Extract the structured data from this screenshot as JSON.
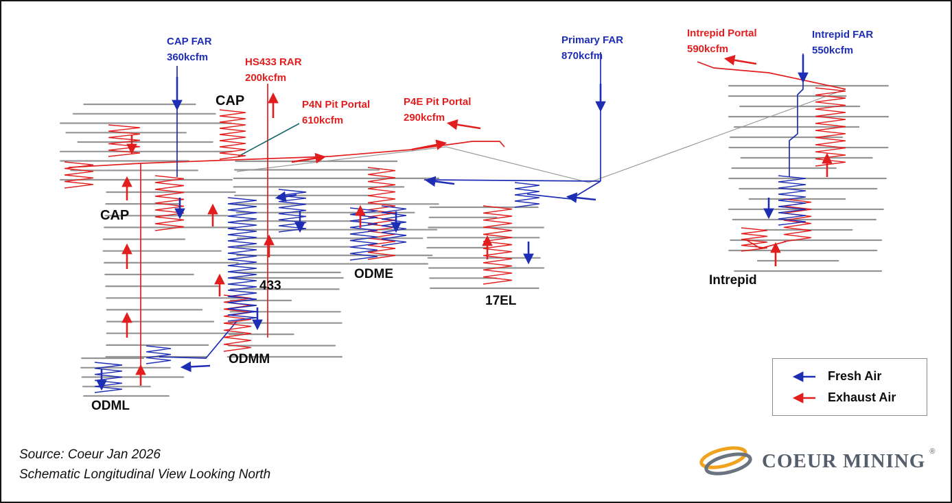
{
  "diagram": {
    "annotations": {
      "cap_far": {
        "name": "CAP FAR",
        "value": "360kcfm"
      },
      "hs433_rar": {
        "name": "HS433 RAR",
        "value": "200kcfm"
      },
      "p4n_pit_portal": {
        "name": "P4N Pit Portal",
        "value": "610kcfm"
      },
      "p4e_pit_portal": {
        "name": "P4E Pit Portal",
        "value": "290kcfm"
      },
      "primary_far": {
        "name": "Primary FAR",
        "value": "870kcfm"
      },
      "intrepid_portal": {
        "name": "Intrepid Portal",
        "value": "590kcfm"
      },
      "intrepid_far": {
        "name": "Intrepid FAR",
        "value": "550kcfm"
      }
    },
    "areas": {
      "cap_upper": "CAP",
      "cap_lower": "CAP",
      "ramp_433": "433",
      "odme": "ODME",
      "el_17": "17EL",
      "odmm": "ODMM",
      "odml": "ODML",
      "intrepid": "Intrepid"
    }
  },
  "legend": {
    "fresh_air": "Fresh Air",
    "exhaust_air": "Exhaust Air"
  },
  "footer": {
    "source": "Source: Coeur Jan 2026",
    "caption": "Schematic Longitudinal View Looking North"
  },
  "logo": {
    "brand": "COEUR MINING",
    "registered": "®"
  },
  "colors": {
    "fresh_air": "#1d2db4",
    "exhaust_air": "#e11d1d",
    "levels": "#8f8f8f",
    "annotation_pointer": "#16666a"
  }
}
